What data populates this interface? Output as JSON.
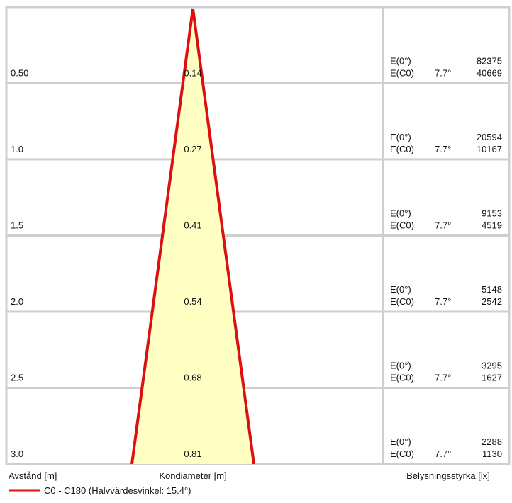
{
  "rows": [
    {
      "distance": "0.50",
      "diameter": "0.14",
      "e0_label": "E(0°)",
      "e0_value": "82375",
      "ec0_label": "E(C0)",
      "angle": "7.7°",
      "ec0_value": "40669"
    },
    {
      "distance": "1.0",
      "diameter": "0.27",
      "e0_label": "E(0°)",
      "e0_value": "20594",
      "ec0_label": "E(C0)",
      "angle": "7.7°",
      "ec0_value": "10167"
    },
    {
      "distance": "1.5",
      "diameter": "0.41",
      "e0_label": "E(0°)",
      "e0_value": "9153",
      "ec0_label": "E(C0)",
      "angle": "7.7°",
      "ec0_value": "4519"
    },
    {
      "distance": "2.0",
      "diameter": "0.54",
      "e0_label": "E(0°)",
      "e0_value": "5148",
      "ec0_label": "E(C0)",
      "angle": "7.7°",
      "ec0_value": "2542"
    },
    {
      "distance": "2.5",
      "diameter": "0.68",
      "e0_label": "E(0°)",
      "e0_value": "3295",
      "ec0_label": "E(C0)",
      "angle": "7.7°",
      "ec0_value": "1627"
    },
    {
      "distance": "3.0",
      "diameter": "0.81",
      "e0_label": "E(0°)",
      "e0_value": "2288",
      "ec0_label": "E(C0)",
      "angle": "7.7°",
      "ec0_value": "1130"
    }
  ],
  "footer": {
    "distance_label": "Avstånd [m]",
    "diameter_label": "Kondiameter [m]",
    "illuminance_label": "Belysningsstyrka [lx]"
  },
  "legend": {
    "label": "C0 - C180 (Halvvärdesvinkel: 15.4°)"
  }
}
